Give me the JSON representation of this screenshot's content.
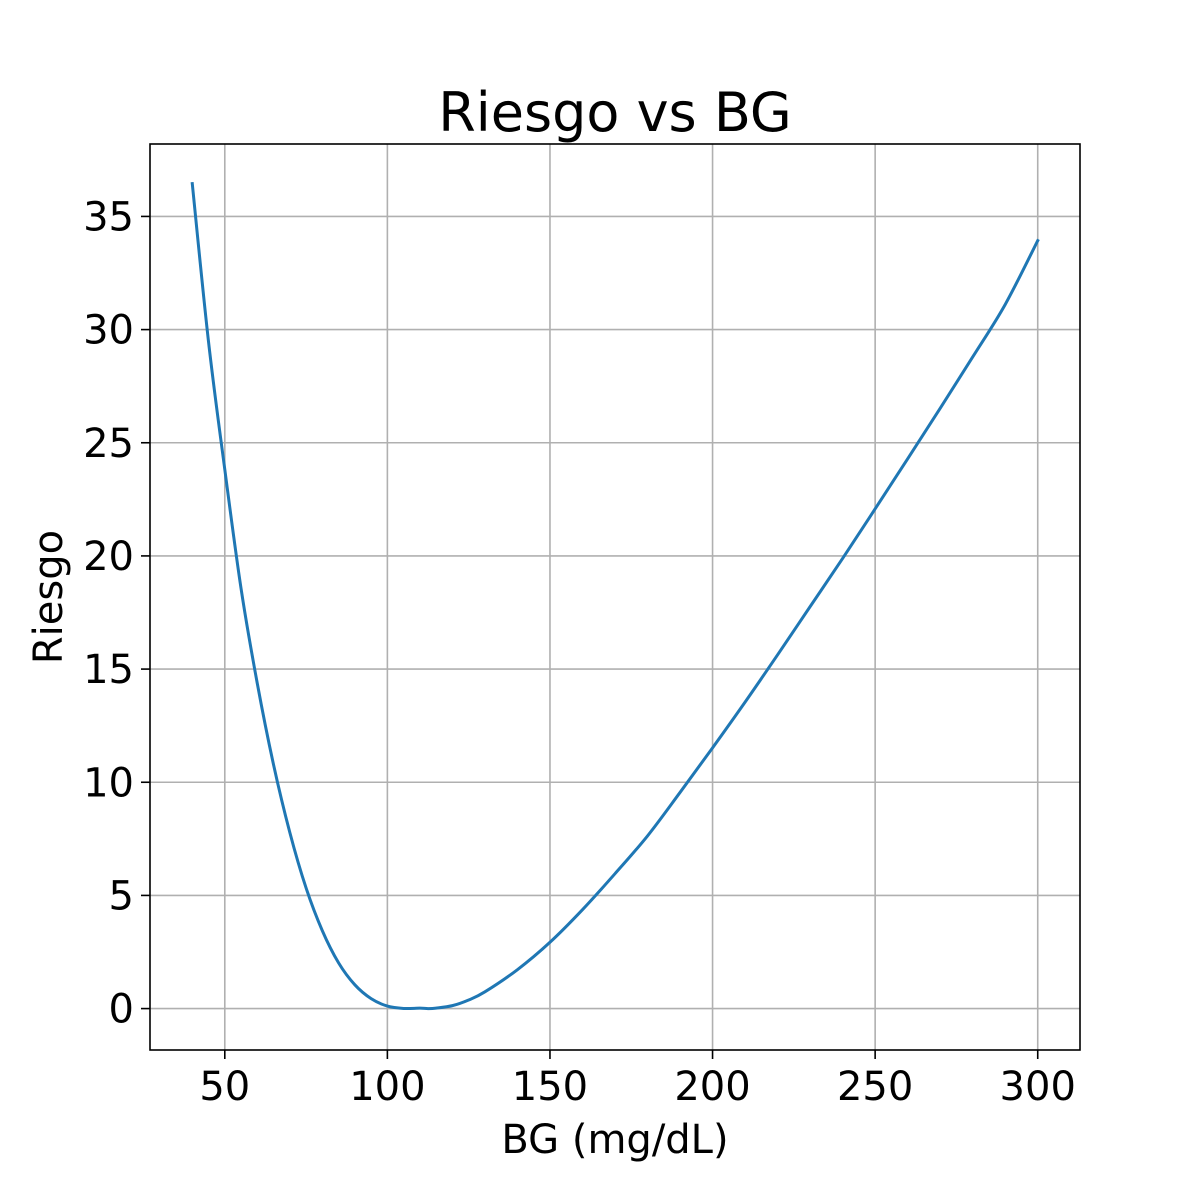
{
  "chart_data": {
    "type": "line",
    "title": "Riesgo vs BG",
    "xlabel": "BG (mg/dL)",
    "ylabel": "Riesgo",
    "xlim": [
      27,
      313
    ],
    "ylim": [
      -1.83,
      38.2
    ],
    "xticks": [
      50,
      100,
      150,
      200,
      250,
      300
    ],
    "yticks": [
      0,
      5,
      10,
      15,
      20,
      25,
      30,
      35
    ],
    "grid": true,
    "series": [
      {
        "color": "#1f77b4",
        "x": [
          40,
          45,
          50,
          55,
          60,
          65,
          70,
          75,
          80,
          85,
          90,
          95,
          100,
          105,
          110,
          112.5,
          115,
          120,
          125,
          130,
          140,
          150,
          160,
          170,
          180,
          190,
          200,
          210,
          220,
          230,
          240,
          250,
          260,
          270,
          280,
          290,
          300
        ],
        "y": [
          36.45,
          29.46,
          23.82,
          18.56,
          14.36,
          10.77,
          7.78,
          5.33,
          3.44,
          2.02,
          1.05,
          0.44,
          0.11,
          0.005,
          0.02,
          0.0,
          0.02,
          0.13,
          0.38,
          0.74,
          1.72,
          2.93,
          4.37,
          5.96,
          7.63,
          9.55,
          11.52,
          13.54,
          15.63,
          17.76,
          19.89,
          22.08,
          24.29,
          26.52,
          28.79,
          31.11,
          33.93
        ]
      }
    ]
  }
}
